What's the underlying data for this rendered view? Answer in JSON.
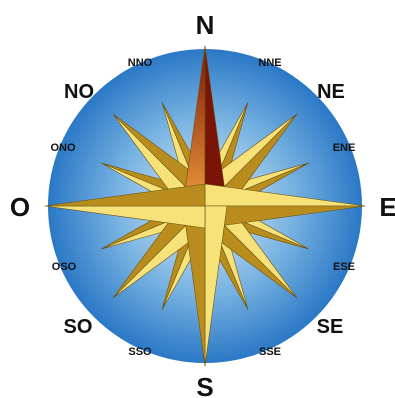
{
  "colors": {
    "disc_center": "#dcecfa",
    "disc_mid": "#7ab4e2",
    "disc_edge": "#2a78c6",
    "point_light": "#f7e27a",
    "point_shadow": "#b88d1e",
    "north_light": "#f09a3c",
    "north_dark": "#7a1406",
    "outline": "#6b5310"
  },
  "compass": {
    "cardinals": [
      {
        "id": "n",
        "label": "N"
      },
      {
        "id": "e",
        "label": "E"
      },
      {
        "id": "s",
        "label": "S"
      },
      {
        "id": "o",
        "label": "O"
      }
    ],
    "intercardinals": [
      {
        "id": "ne",
        "label": "NE"
      },
      {
        "id": "se",
        "label": "SE"
      },
      {
        "id": "so",
        "label": "SO"
      },
      {
        "id": "no",
        "label": "NO"
      }
    ],
    "minor": [
      {
        "id": "nne",
        "label": "NNE"
      },
      {
        "id": "ene",
        "label": "ENE"
      },
      {
        "id": "ese",
        "label": "ESE"
      },
      {
        "id": "sse",
        "label": "SSE"
      },
      {
        "id": "sso",
        "label": "SSO"
      },
      {
        "id": "oso",
        "label": "OSO"
      },
      {
        "id": "ono",
        "label": "ONO"
      },
      {
        "id": "nno",
        "label": "NNO"
      }
    ]
  }
}
